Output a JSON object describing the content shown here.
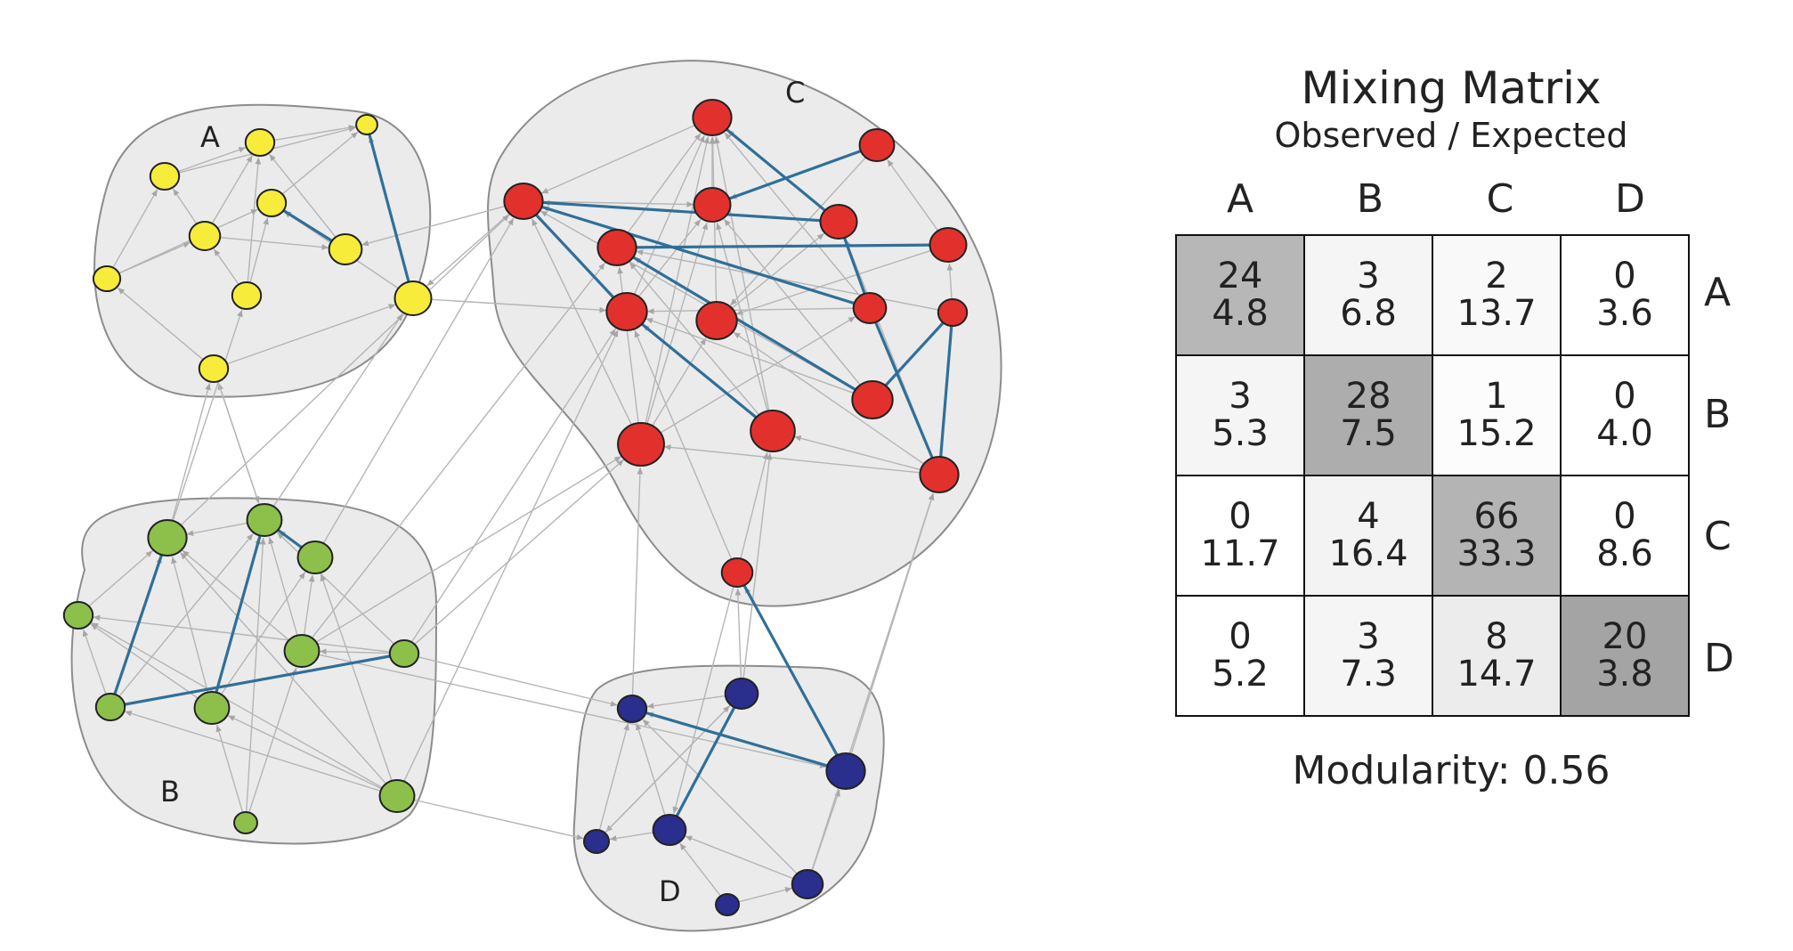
{
  "network": {
    "colors": {
      "A": "#f7ec3a",
      "B": "#8dc04b",
      "C": "#e2312d",
      "D": "#2a2e8c",
      "cluster_fill": "#ebebeb",
      "cluster_stroke": "#8c8c8c",
      "edge": "#b5b5b5",
      "strong_edge": "#2f6f99"
    },
    "cluster_labels": {
      "A": "A",
      "B": "B",
      "C": "C",
      "D": "D"
    }
  },
  "matrix": {
    "title": "Mixing Matrix",
    "subtitle": "Observed / Expected",
    "columns": [
      "A",
      "B",
      "C",
      "D"
    ],
    "rows": [
      "A",
      "B",
      "C",
      "D"
    ],
    "cells": [
      [
        {
          "observed": "24",
          "expected": "4.8",
          "shade": "#b7b7b7"
        },
        {
          "observed": "3",
          "expected": "6.8",
          "shade": "#f5f5f5"
        },
        {
          "observed": "2",
          "expected": "13.7",
          "shade": "#f9f9f9"
        },
        {
          "observed": "0",
          "expected": "3.6",
          "shade": "#ffffff"
        }
      ],
      [
        {
          "observed": "3",
          "expected": "5.3",
          "shade": "#f5f5f5"
        },
        {
          "observed": "28",
          "expected": "7.5",
          "shade": "#adadad"
        },
        {
          "observed": "1",
          "expected": "15.2",
          "shade": "#fcfcfc"
        },
        {
          "observed": "0",
          "expected": "4.0",
          "shade": "#ffffff"
        }
      ],
      [
        {
          "observed": "0",
          "expected": "11.7",
          "shade": "#ffffff"
        },
        {
          "observed": "4",
          "expected": "16.4",
          "shade": "#f3f3f3"
        },
        {
          "observed": "66",
          "expected": "33.3",
          "shade": "#b4b4b4"
        },
        {
          "observed": "0",
          "expected": "8.6",
          "shade": "#ffffff"
        }
      ],
      [
        {
          "observed": "0",
          "expected": "5.2",
          "shade": "#ffffff"
        },
        {
          "observed": "3",
          "expected": "7.3",
          "shade": "#f5f5f5"
        },
        {
          "observed": "8",
          "expected": "14.7",
          "shade": "#ececec"
        },
        {
          "observed": "20",
          "expected": "3.8",
          "shade": "#a4a4a4"
        }
      ]
    ],
    "modularity_label": "Modularity: 0.56"
  }
}
